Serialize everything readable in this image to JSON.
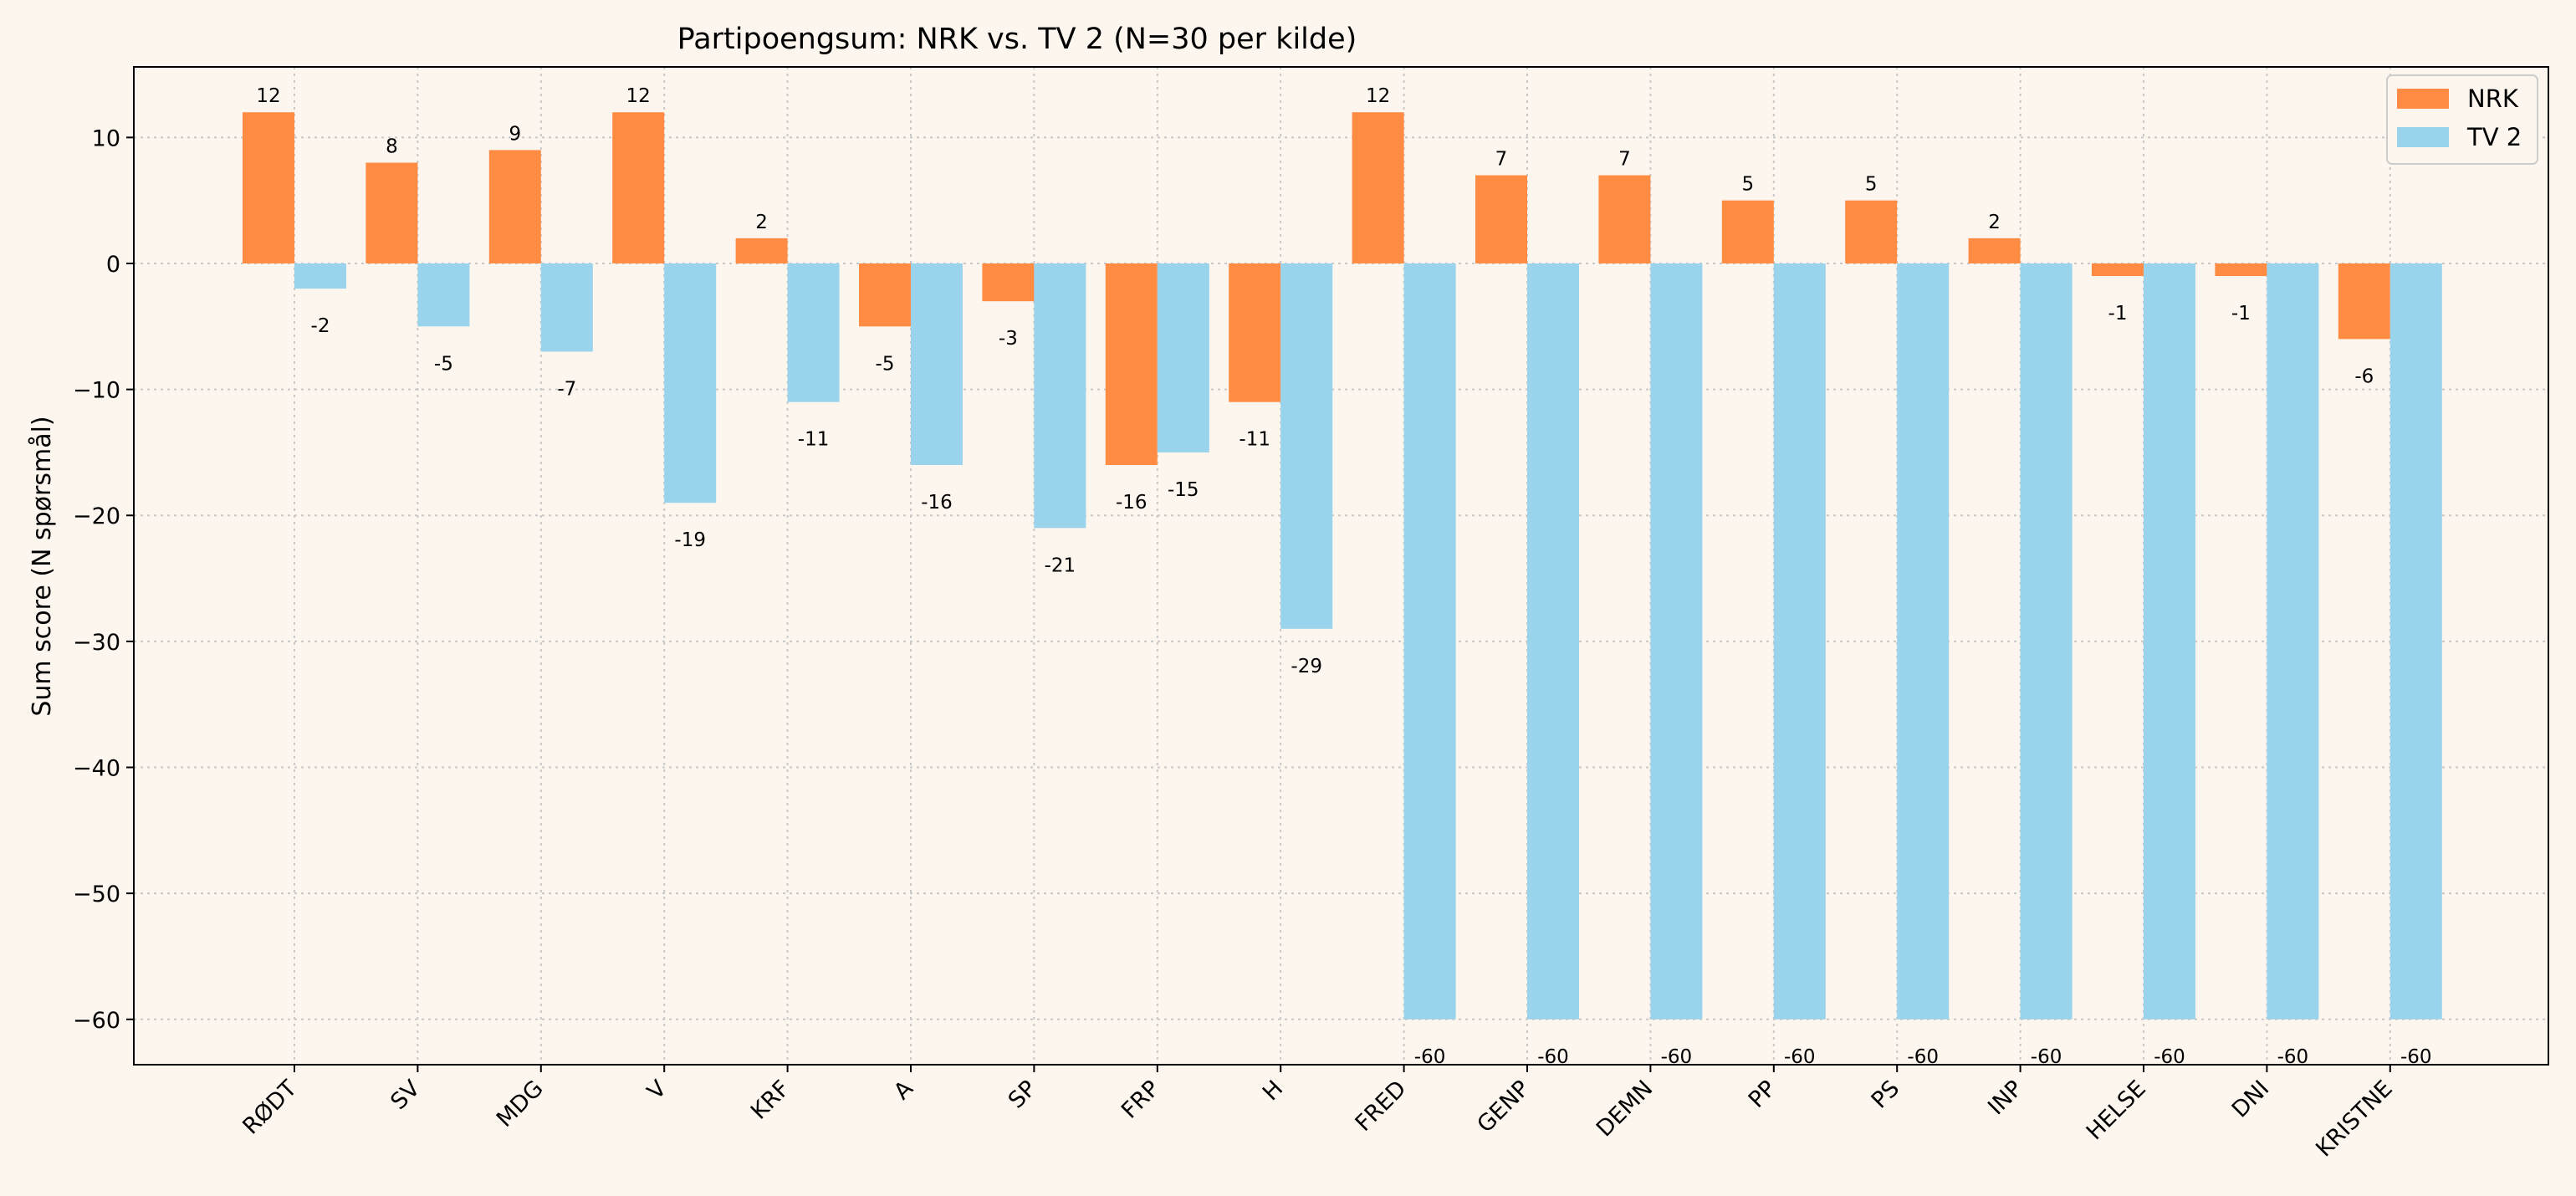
{
  "chart_data": {
    "type": "bar",
    "title": "Partipoengsum: NRK vs. TV 2 (N=30 per kilde)",
    "xlabel": "",
    "ylabel": "Sum score (N spørsmål)",
    "categories": [
      "RØDT",
      "SV",
      "MDG",
      "V",
      "KRF",
      "A",
      "SP",
      "FRP",
      "H",
      "FRED",
      "GENP",
      "DEMN",
      "PP",
      "PS",
      "INP",
      "HELSE",
      "DNI",
      "KRISTNE"
    ],
    "series": [
      {
        "name": "NRK",
        "color": "#ff8c42",
        "values": [
          12,
          8,
          9,
          12,
          2,
          -5,
          -3,
          -16,
          -11,
          12,
          7,
          7,
          5,
          5,
          2,
          -1,
          -1,
          -6
        ]
      },
      {
        "name": "TV 2",
        "color": "#99d3ec",
        "values": [
          -2,
          -5,
          -7,
          -19,
          -11,
          -16,
          -21,
          -15,
          -29,
          -60,
          -60,
          -60,
          -60,
          -60,
          -60,
          -60,
          -60,
          -60
        ]
      }
    ],
    "ylim": [
      -63.6,
      15.6
    ],
    "yticks": [
      10,
      0,
      -10,
      -20,
      -30,
      -40,
      -50,
      -60
    ],
    "ytick_labels": [
      "10",
      "0",
      "−10",
      "−20",
      "−30",
      "−40",
      "−50",
      "−60"
    ],
    "grid": true,
    "legend_position": "top-right",
    "background_color": "#fdf6ef"
  }
}
